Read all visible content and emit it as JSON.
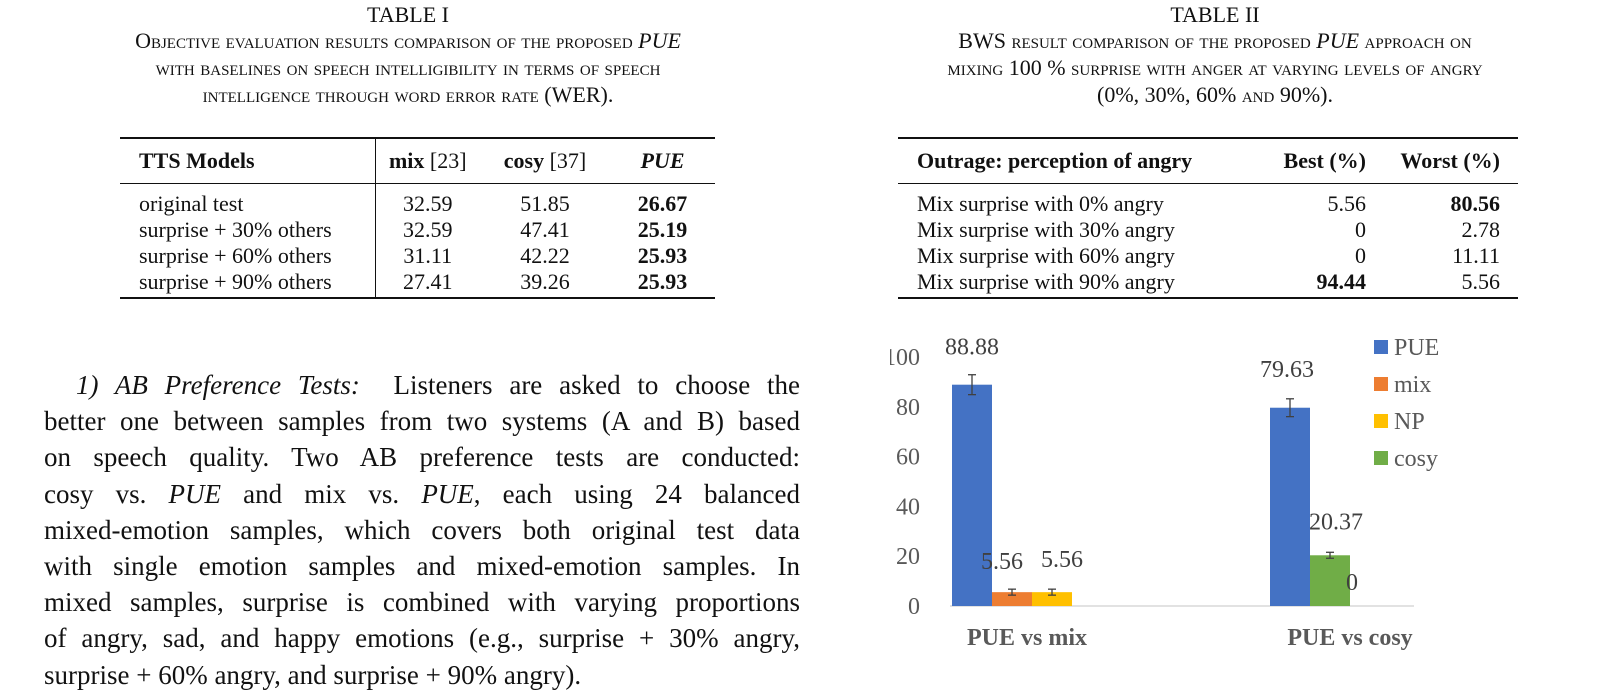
{
  "table1": {
    "label": "TABLE I",
    "title_lines": [
      [
        "Objective evaluation results comparison of the proposed ",
        "PUE"
      ],
      [
        "with baselines on speech intelligibility in terms of speech",
        ""
      ],
      [
        "intelligence through word error rate (WER).",
        ""
      ]
    ],
    "headers": [
      "TTS Models",
      "mix",
      "[23]",
      "cosy",
      "[37]",
      "PUE"
    ],
    "rows": [
      {
        "model": "original test",
        "mix": "32.59",
        "cosy": "51.85",
        "pue": "26.67"
      },
      {
        "model": "surprise + 30% others",
        "mix": "32.59",
        "cosy": "47.41",
        "pue": "25.19"
      },
      {
        "model": "surprise + 60% others",
        "mix": "31.11",
        "cosy": "42.22",
        "pue": "25.93"
      },
      {
        "model": "surprise + 90% others",
        "mix": "27.41",
        "cosy": "39.26",
        "pue": "25.93"
      }
    ]
  },
  "table2": {
    "label": "TABLE II",
    "title_lines": [
      [
        "BWS result comparison of the proposed ",
        "PUE",
        " approach on"
      ],
      [
        "mixing 100 % surprise with anger at varying levels of angry",
        "",
        ""
      ],
      [
        "(0%, 30%, 60% and 90%).",
        "",
        ""
      ]
    ],
    "headers": [
      "Outrage: perception of angry",
      "Best (%)",
      "Worst (%)"
    ],
    "rows": [
      {
        "label": "Mix surprise with 0% angry",
        "best": "5.56",
        "worst": "80.56",
        "bold": "worst"
      },
      {
        "label": "Mix surprise with 30% angry",
        "best": "0",
        "worst": "2.78",
        "bold": ""
      },
      {
        "label": "Mix surprise with 60% angry",
        "best": "0",
        "worst": "11.11",
        "bold": ""
      },
      {
        "label": "Mix surprise with 90% angry",
        "best": "94.44",
        "worst": "5.56",
        "bold": "best"
      }
    ]
  },
  "section": {
    "heading": "1) AB Preference Tests:",
    "lines": [
      "Listeners are asked to choose the",
      "better one between samples from two systems (A and B) based",
      "on speech quality. Two AB preference tests are conducted:",
      [
        "cosy vs. ",
        "PUE",
        " and mix vs. ",
        "PUE",
        ", each using 24 balanced"
      ],
      "mixed-emotion samples, which covers both original test data",
      "with single emotion samples and mixed-emotion samples. In",
      "mixed samples, surprise is combined with varying proportions",
      "of angry, sad, and happy emotions (e.g., surprise + 30% angry,",
      "surprise + 60% angry, and surprise + 90% angry)."
    ]
  },
  "chart_data": {
    "type": "bar",
    "categories": [
      "PUE vs mix",
      "PUE vs cosy"
    ],
    "series": [
      {
        "name": "PUE",
        "color": "#4472c4",
        "values": [
          88.88,
          79.63
        ],
        "labels": [
          "88.88",
          "79.63"
        ]
      },
      {
        "name": "mix",
        "color": "#ed7d31",
        "values": [
          5.56,
          null
        ],
        "labels": [
          "5.56",
          ""
        ]
      },
      {
        "name": "NP",
        "color": "#ffc000",
        "values": [
          5.56,
          null
        ],
        "labels": [
          "5.56",
          ""
        ]
      },
      {
        "name": "cosy",
        "color": "#70ad47",
        "values": [
          null,
          20.37
        ],
        "labels": [
          "",
          "20.37"
        ]
      }
    ],
    "zero_label": "0",
    "ylim": [
      0,
      100
    ],
    "yticks": [
      0,
      20,
      40,
      60,
      80,
      100
    ],
    "error_bars": true,
    "legend": "top-right",
    "grid": false
  }
}
